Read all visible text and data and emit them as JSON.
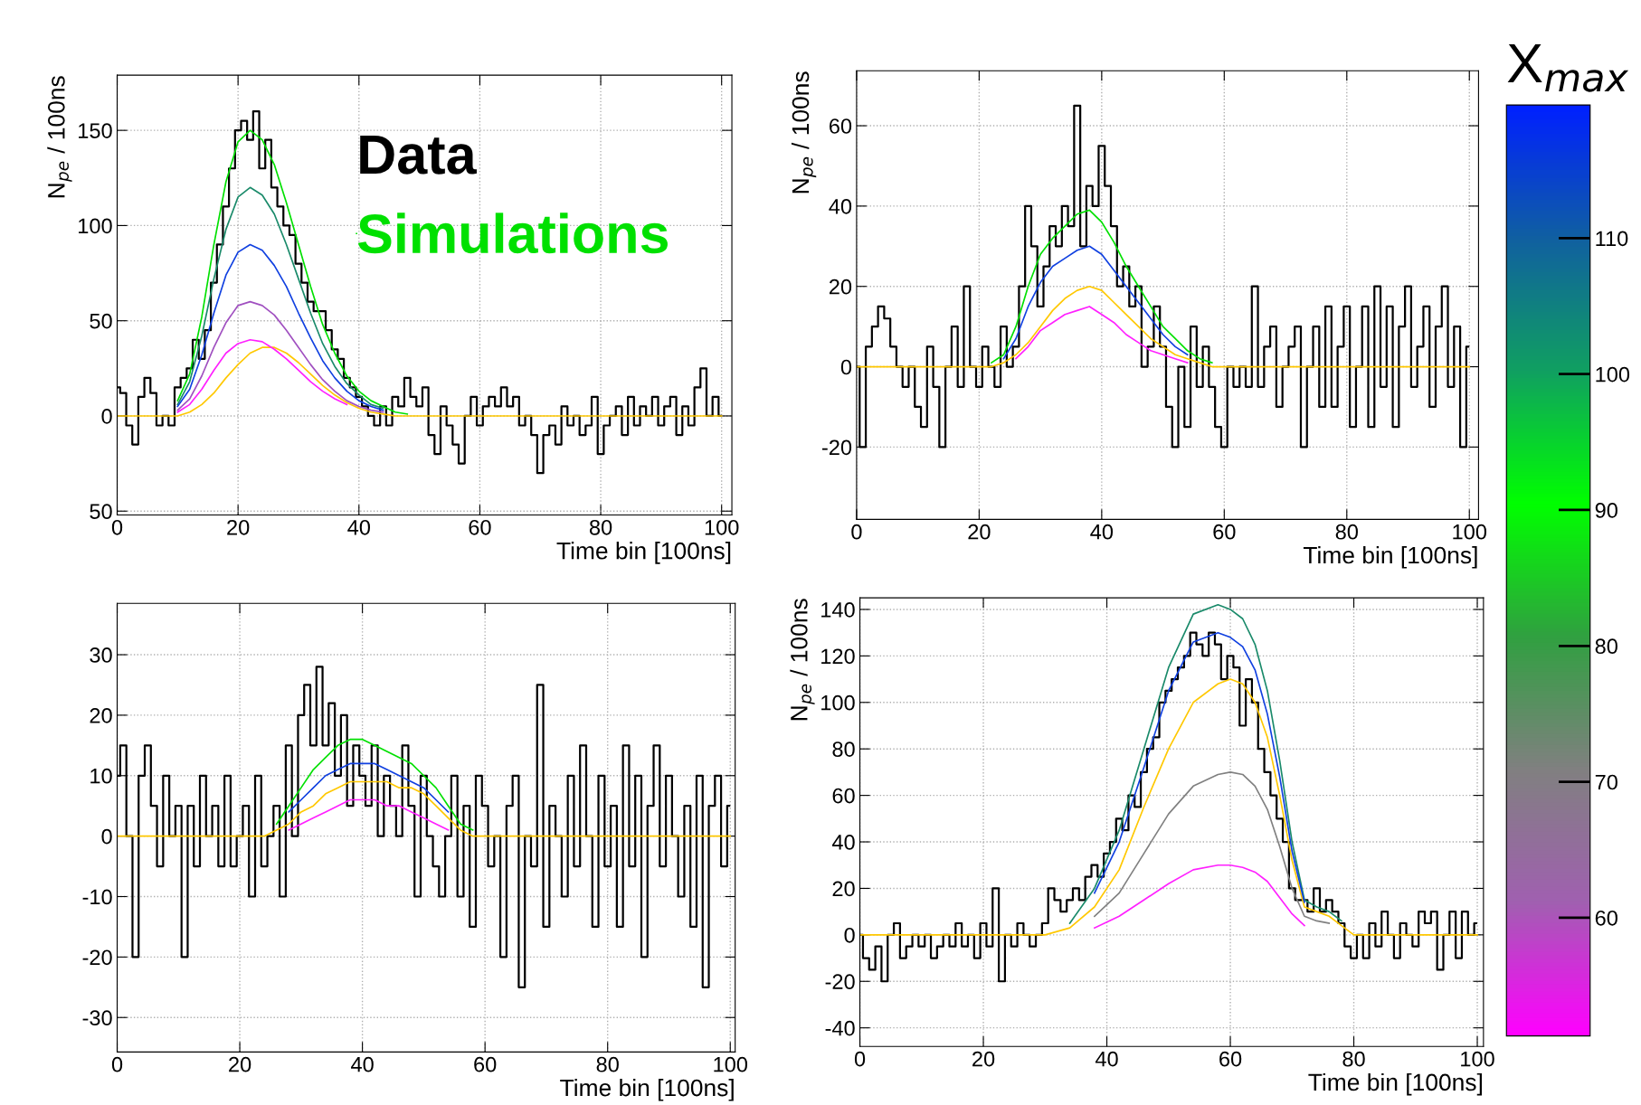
{
  "chart_data": [
    {
      "type": "line",
      "xlabel": "Time bin [100ns]",
      "ylabel": "N$_{pe}$ / 100ns",
      "xlim": [
        0,
        101.7
      ],
      "ylim": [
        -52,
        179
      ],
      "xticks": [
        0,
        20,
        40,
        60,
        80,
        100
      ],
      "yticks": [
        {
          "value": -50,
          "label": "50"
        },
        0,
        50,
        100,
        150
      ],
      "grid": true,
      "legend": "top right",
      "series": [
        {
          "name": "Data",
          "type": "step",
          "color": "#000000",
          "x": [
            0,
            1,
            2,
            3,
            4,
            5,
            6,
            7,
            8,
            9,
            10,
            11,
            12,
            13,
            14,
            15,
            16,
            17,
            18,
            19,
            20,
            21,
            22,
            23,
            24,
            25,
            26,
            27,
            28,
            29,
            30,
            31,
            32,
            33,
            34,
            35,
            36,
            37,
            38,
            39,
            40,
            41,
            42,
            43,
            44,
            45,
            46,
            47,
            48,
            49,
            50,
            51,
            52,
            53,
            54,
            55,
            56,
            57,
            58,
            59,
            60,
            61,
            62,
            63,
            64,
            65,
            66,
            67,
            68,
            69,
            70,
            71,
            72,
            73,
            74,
            75,
            76,
            77,
            78,
            79,
            80,
            81,
            82,
            83,
            84,
            85,
            86,
            87,
            88,
            89,
            90,
            91,
            92,
            93,
            94,
            95,
            96,
            97,
            98,
            99,
            100
          ],
          "values": [
            15,
            12,
            -5,
            -15,
            10,
            20,
            12,
            -5,
            0,
            -5,
            15,
            20,
            25,
            40,
            30,
            45,
            70,
            90,
            110,
            130,
            150,
            155,
            145,
            160,
            130,
            145,
            120,
            110,
            100,
            95,
            80,
            70,
            60,
            55,
            55,
            45,
            35,
            30,
            20,
            15,
            10,
            5,
            0,
            -5,
            5,
            -5,
            10,
            5,
            20,
            10,
            5,
            15,
            -10,
            -20,
            5,
            -5,
            -15,
            -25,
            0,
            10,
            -5,
            5,
            10,
            5,
            15,
            5,
            10,
            -5,
            0,
            -10,
            -30,
            -10,
            -5,
            -15,
            5,
            -5,
            0,
            -10,
            -5,
            10,
            -20,
            -5,
            0,
            5,
            -10,
            10,
            -5,
            5,
            0,
            10,
            -5,
            5,
            10,
            -10,
            5,
            -5,
            15,
            25,
            0,
            10,
            0
          ]
        },
        {
          "color": "#ffc800",
          "x": [
            0,
            10,
            12,
            14,
            16,
            18,
            20,
            22,
            24,
            26,
            28,
            30,
            32,
            34,
            36,
            38,
            40,
            42,
            44,
            46,
            100
          ],
          "values": [
            0,
            0,
            2,
            6,
            12,
            20,
            27,
            33,
            36,
            36,
            33,
            28,
            22,
            16,
            11,
            7,
            4,
            2,
            1,
            0,
            0
          ]
        },
        {
          "name": "Simulations",
          "color": "#00e000",
          "x": [
            10,
            12,
            14,
            16,
            18,
            20,
            22,
            24,
            26,
            28,
            30,
            32,
            34,
            36,
            38,
            40,
            42,
            44,
            46,
            48
          ],
          "values": [
            8,
            22,
            52,
            90,
            123,
            144,
            150,
            145,
            132,
            112,
            90,
            68,
            48,
            33,
            21,
            13,
            8,
            5,
            2,
            1
          ]
        },
        {
          "color": "#1a8a6a",
          "x": [
            10,
            12,
            14,
            16,
            18,
            20,
            22,
            24,
            26,
            28,
            30,
            32,
            34,
            36,
            38,
            40,
            42,
            44
          ],
          "values": [
            6,
            18,
            42,
            72,
            98,
            115,
            120,
            116,
            106,
            90,
            72,
            54,
            38,
            26,
            17,
            11,
            6,
            4
          ]
        },
        {
          "color": "#1040e0",
          "x": [
            10,
            12,
            14,
            16,
            18,
            20,
            22,
            24,
            26,
            28,
            30,
            32,
            34,
            36,
            38,
            40,
            42,
            44
          ],
          "values": [
            5,
            14,
            32,
            54,
            74,
            86,
            90,
            87,
            79,
            68,
            54,
            41,
            29,
            20,
            13,
            8,
            5,
            3
          ]
        },
        {
          "color": "#a050c0",
          "x": [
            10,
            12,
            14,
            16,
            18,
            20,
            22,
            24,
            26,
            28,
            30,
            32,
            34,
            36,
            38,
            40,
            42,
            44
          ],
          "values": [
            3,
            9,
            21,
            36,
            49,
            58,
            60,
            58,
            53,
            45,
            36,
            27,
            19,
            13,
            8,
            5,
            3,
            2
          ]
        },
        {
          "color": "#ff20ff",
          "x": [
            10,
            12,
            14,
            16,
            18,
            20,
            22,
            24,
            26,
            28,
            30,
            32,
            34,
            36,
            38
          ],
          "values": [
            2,
            6,
            14,
            24,
            33,
            38,
            40,
            39,
            35,
            30,
            24,
            18,
            13,
            9,
            6
          ]
        }
      ]
    },
    {
      "type": "line",
      "xlabel": "Time bin [100ns]",
      "ylabel": "N$_{pe}$ / 100ns",
      "xlim": [
        0,
        101.5
      ],
      "ylim": [
        -38,
        73.7
      ],
      "xticks": [
        0,
        20,
        40,
        60,
        80,
        100
      ],
      "yticks": [
        -20,
        0,
        20,
        40,
        60
      ],
      "grid": true,
      "clabel": "X$_{max}$",
      "clim": [
        51.3,
        119.8
      ],
      "cticks": [
        60,
        70,
        80,
        90,
        100,
        110
      ],
      "series": [
        {
          "type": "step",
          "color": "#000000",
          "x": [
            0,
            1,
            2,
            3,
            4,
            5,
            6,
            7,
            8,
            9,
            10,
            11,
            12,
            13,
            14,
            15,
            16,
            17,
            18,
            19,
            20,
            21,
            22,
            23,
            24,
            25,
            26,
            27,
            28,
            29,
            30,
            31,
            32,
            33,
            34,
            35,
            36,
            37,
            38,
            39,
            40,
            41,
            42,
            43,
            44,
            45,
            46,
            47,
            48,
            49,
            50,
            51,
            52,
            53,
            54,
            55,
            56,
            57,
            58,
            59,
            60,
            61,
            62,
            63,
            64,
            65,
            66,
            67,
            68,
            69,
            70,
            71,
            72,
            73,
            74,
            75,
            76,
            77,
            78,
            79,
            80,
            81,
            82,
            83,
            84,
            85,
            86,
            87,
            88,
            89,
            90,
            91,
            92,
            93,
            94,
            95,
            96,
            97,
            98,
            99,
            100
          ],
          "values": [
            0,
            -20,
            5,
            10,
            15,
            12,
            5,
            0,
            -5,
            0,
            -10,
            -15,
            5,
            -5,
            -20,
            0,
            10,
            -5,
            20,
            0,
            -5,
            5,
            0,
            -5,
            10,
            0,
            5,
            20,
            40,
            30,
            15,
            25,
            35,
            30,
            40,
            35,
            65,
            30,
            45,
            40,
            55,
            45,
            35,
            20,
            25,
            15,
            20,
            0,
            5,
            15,
            5,
            -10,
            -20,
            0,
            -15,
            10,
            -5,
            5,
            -5,
            -15,
            -20,
            0,
            -5,
            0,
            -5,
            20,
            -5,
            5,
            10,
            -10,
            0,
            5,
            10,
            -20,
            0,
            10,
            -10,
            15,
            -10,
            5,
            15,
            -15,
            0,
            15,
            -15,
            20,
            -5,
            15,
            -15,
            10,
            20,
            -5,
            5,
            15,
            -10,
            10,
            20,
            -5,
            10,
            -20,
            5
          ]
        },
        {
          "color": "#ffc800",
          "x": [
            0,
            22,
            24,
            26,
            28,
            30,
            32,
            34,
            36,
            38,
            40,
            42,
            44,
            46,
            48,
            50,
            52,
            54,
            56,
            58,
            100
          ],
          "values": [
            0,
            0,
            1,
            3,
            6,
            10,
            14,
            17,
            19,
            20,
            19,
            16,
            13,
            10,
            7,
            5,
            3,
            2,
            1,
            0,
            0
          ]
        },
        {
          "color": "#00e000",
          "x": [
            22,
            24,
            26,
            28,
            30,
            32,
            34,
            36,
            38,
            40,
            42,
            44,
            46,
            48,
            50,
            52,
            54,
            56,
            58
          ],
          "values": [
            1,
            3,
            10,
            20,
            28,
            32,
            35,
            38,
            39,
            36,
            31,
            25,
            20,
            15,
            10,
            7,
            4,
            2,
            1
          ]
        },
        {
          "color": "#1040e0",
          "x": [
            24,
            26,
            28,
            30,
            32,
            34,
            36,
            38,
            40,
            42,
            44,
            46,
            48,
            50,
            52,
            54
          ],
          "values": [
            2,
            7,
            15,
            21,
            25,
            27,
            29,
            30,
            28,
            24,
            20,
            16,
            12,
            8,
            5,
            3
          ]
        },
        {
          "color": "#ff20ff",
          "x": [
            26,
            28,
            30,
            32,
            34,
            36,
            38,
            40,
            42,
            44,
            46,
            48,
            50,
            52,
            54
          ],
          "values": [
            2,
            5,
            9,
            11,
            13,
            14,
            15,
            13,
            11,
            8,
            6,
            4,
            3,
            2,
            1
          ]
        }
      ]
    },
    {
      "type": "line",
      "xlim": [
        0,
        100.8
      ],
      "ylim": [
        -35.7,
        38.5
      ],
      "xticks": [
        0,
        20,
        40,
        60,
        80,
        100
      ],
      "yticks": [
        -30,
        -20,
        -10,
        0,
        10,
        20,
        30
      ],
      "grid": true,
      "xlabel": "Time bin [100ns]",
      "series": [
        {
          "type": "step",
          "color": "#000000",
          "x": [
            0,
            1,
            2,
            3,
            4,
            5,
            6,
            7,
            8,
            9,
            10,
            11,
            12,
            13,
            14,
            15,
            16,
            17,
            18,
            19,
            20,
            21,
            22,
            23,
            24,
            25,
            26,
            27,
            28,
            29,
            30,
            31,
            32,
            33,
            34,
            35,
            36,
            37,
            38,
            39,
            40,
            41,
            42,
            43,
            44,
            45,
            46,
            47,
            48,
            49,
            50,
            51,
            52,
            53,
            54,
            55,
            56,
            57,
            58,
            59,
            60,
            61,
            62,
            63,
            64,
            65,
            66,
            67,
            68,
            69,
            70,
            71,
            72,
            73,
            74,
            75,
            76,
            77,
            78,
            79,
            80,
            81,
            82,
            83,
            84,
            85,
            86,
            87,
            88,
            89,
            90,
            91,
            92,
            93,
            94,
            95,
            96,
            97,
            98,
            99,
            100
          ],
          "values": [
            10,
            15,
            0,
            -20,
            10,
            15,
            5,
            -5,
            10,
            0,
            5,
            -20,
            5,
            -5,
            10,
            0,
            5,
            -5,
            10,
            -5,
            0,
            5,
            -10,
            10,
            -5,
            0,
            5,
            -10,
            15,
            0,
            20,
            25,
            15,
            28,
            15,
            22,
            10,
            20,
            5,
            15,
            10,
            5,
            15,
            0,
            10,
            5,
            0,
            15,
            5,
            -10,
            10,
            0,
            -5,
            -10,
            0,
            10,
            -10,
            5,
            -15,
            10,
            5,
            -5,
            0,
            -20,
            5,
            10,
            -25,
            0,
            -5,
            25,
            -15,
            5,
            0,
            -10,
            10,
            -5,
            15,
            0,
            -15,
            10,
            -5,
            5,
            -15,
            15,
            -5,
            10,
            -20,
            5,
            15,
            -5,
            10,
            0,
            -10,
            5,
            -15,
            10,
            -25,
            5,
            10,
            -5,
            5
          ]
        },
        {
          "color": "#ffc800",
          "x": [
            0,
            24,
            26,
            28,
            30,
            32,
            34,
            36,
            38,
            40,
            42,
            44,
            46,
            48,
            50,
            52,
            54,
            56,
            58,
            100
          ],
          "values": [
            0,
            0,
            1,
            2,
            4,
            5,
            7,
            8,
            9,
            9,
            9,
            9,
            8,
            8,
            7,
            5,
            3,
            1,
            0,
            0
          ]
        },
        {
          "color": "#00e000",
          "x": [
            26,
            28,
            30,
            32,
            34,
            36,
            38,
            40,
            42,
            44,
            46,
            48,
            50,
            52,
            54,
            56,
            58
          ],
          "values": [
            2,
            5,
            8,
            11,
            13,
            15,
            16,
            16,
            15,
            14,
            13,
            12,
            10,
            8,
            5,
            2,
            1
          ]
        },
        {
          "color": "#1040e0",
          "x": [
            28,
            30,
            32,
            34,
            36,
            38,
            40,
            42,
            44,
            46,
            48,
            50,
            52,
            54
          ],
          "values": [
            4,
            6,
            8,
            10,
            11,
            12,
            12,
            12,
            11,
            10,
            9,
            8,
            6,
            4
          ]
        },
        {
          "color": "#ff20ff",
          "x": [
            28,
            30,
            32,
            34,
            36,
            38,
            40,
            42,
            44,
            46,
            48,
            50,
            52,
            54
          ],
          "values": [
            1,
            2,
            3,
            4,
            5,
            6,
            6,
            6,
            5,
            5,
            4,
            3,
            2,
            1
          ]
        }
      ]
    },
    {
      "type": "line",
      "xlabel": "Time bin [100ns]",
      "ylabel": "N$_{pe}$ / 100ns",
      "xlim": [
        0,
        101
      ],
      "ylim": [
        -48,
        145
      ],
      "xticks": [
        0,
        20,
        40,
        60,
        80,
        100
      ],
      "yticks": [
        -40,
        -20,
        0,
        20,
        40,
        60,
        80,
        100,
        120,
        140
      ],
      "grid": true,
      "series": [
        {
          "type": "step",
          "color": "#000000",
          "x": [
            0,
            1,
            2,
            3,
            4,
            5,
            6,
            7,
            8,
            9,
            10,
            11,
            12,
            13,
            14,
            15,
            16,
            17,
            18,
            19,
            20,
            21,
            22,
            23,
            24,
            25,
            26,
            27,
            28,
            29,
            30,
            31,
            32,
            33,
            34,
            35,
            36,
            37,
            38,
            39,
            40,
            41,
            42,
            43,
            44,
            45,
            46,
            47,
            48,
            49,
            50,
            51,
            52,
            53,
            54,
            55,
            56,
            57,
            58,
            59,
            60,
            61,
            62,
            63,
            64,
            65,
            66,
            67,
            68,
            69,
            70,
            71,
            72,
            73,
            74,
            75,
            76,
            77,
            78,
            79,
            80,
            81,
            82,
            83,
            84,
            85,
            86,
            87,
            88,
            89,
            90,
            91,
            92,
            93,
            94,
            95,
            96,
            97,
            98,
            99,
            100
          ],
          "values": [
            0,
            -10,
            -15,
            -5,
            -20,
            0,
            5,
            -10,
            -5,
            0,
            -5,
            0,
            -10,
            -5,
            0,
            -5,
            5,
            -5,
            0,
            -10,
            5,
            -5,
            20,
            -20,
            0,
            -5,
            5,
            0,
            -5,
            0,
            5,
            20,
            15,
            10,
            15,
            20,
            15,
            25,
            30,
            25,
            35,
            40,
            50,
            45,
            60,
            55,
            70,
            80,
            85,
            100,
            105,
            110,
            115,
            120,
            130,
            125,
            120,
            130,
            125,
            110,
            120,
            115,
            90,
            110,
            100,
            80,
            70,
            60,
            50,
            40,
            20,
            15,
            15,
            10,
            20,
            10,
            15,
            10,
            5,
            -5,
            -10,
            0,
            -10,
            5,
            -5,
            10,
            0,
            -10,
            5,
            0,
            -5,
            10,
            5,
            10,
            -15,
            0,
            10,
            -10,
            10,
            0,
            5
          ]
        },
        {
          "color": "#ffc800",
          "x": [
            0,
            30,
            34,
            38,
            42,
            46,
            50,
            54,
            58,
            60,
            62,
            64,
            66,
            68,
            70,
            72,
            74,
            76,
            78,
            80,
            100
          ],
          "values": [
            0,
            0,
            3,
            12,
            28,
            55,
            80,
            100,
            108,
            110,
            108,
            100,
            85,
            60,
            32,
            12,
            10,
            8,
            4,
            0,
            0
          ]
        },
        {
          "color": "#1a8a6a",
          "x": [
            34,
            38,
            42,
            46,
            50,
            54,
            58,
            60,
            62,
            64,
            66,
            68,
            70,
            72,
            74,
            76,
            78
          ],
          "values": [
            5,
            20,
            45,
            80,
            115,
            138,
            142,
            140,
            136,
            125,
            105,
            75,
            40,
            15,
            12,
            10,
            6
          ]
        },
        {
          "color": "#1040e0",
          "x": [
            38,
            42,
            46,
            50,
            54,
            58,
            60,
            62,
            64,
            66,
            68,
            70,
            72
          ],
          "values": [
            18,
            40,
            72,
            105,
            126,
            130,
            128,
            124,
            114,
            95,
            68,
            36,
            14
          ]
        },
        {
          "color": "#808080",
          "x": [
            38,
            42,
            46,
            50,
            54,
            58,
            60,
            62,
            64,
            66,
            68,
            70,
            72,
            74,
            76
          ],
          "values": [
            8,
            18,
            35,
            52,
            64,
            69,
            70,
            69,
            64,
            54,
            38,
            20,
            8,
            6,
            5
          ]
        },
        {
          "color": "#ff20ff",
          "x": [
            38,
            42,
            46,
            50,
            54,
            58,
            60,
            62,
            64,
            66,
            68,
            70,
            72
          ],
          "values": [
            3,
            8,
            15,
            22,
            28,
            30,
            30,
            29,
            27,
            23,
            16,
            9,
            4
          ]
        }
      ]
    }
  ]
}
